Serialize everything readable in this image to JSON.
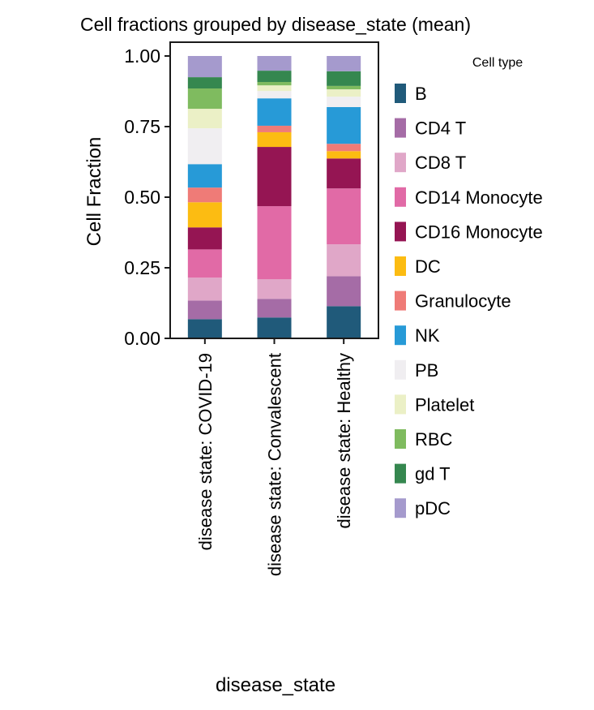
{
  "chart_data": {
    "type": "bar",
    "stacked": true,
    "title": "Cell fractions grouped by disease_state (mean)",
    "xlabel": "disease_state",
    "ylabel": "Cell Fraction",
    "ylim": [
      0,
      1.0
    ],
    "yticks": [
      "0.00",
      "0.25",
      "0.50",
      "0.75",
      "1.00"
    ],
    "ytick_values": [
      0,
      0.25,
      0.5,
      0.75,
      1.0
    ],
    "categories": [
      "disease state: COVID-19",
      "disease state: Convalescent",
      "disease state: Healthy"
    ],
    "legend_title": "Cell type",
    "legend_position": "right",
    "series": [
      {
        "name": "B",
        "color": "#205a7a",
        "values": [
          0.068,
          0.074,
          0.114
        ]
      },
      {
        "name": "CD4 T",
        "color": "#a56ca6",
        "values": [
          0.066,
          0.066,
          0.106
        ]
      },
      {
        "name": "CD8 T",
        "color": "#e0a7c8",
        "values": [
          0.081,
          0.069,
          0.113
        ]
      },
      {
        "name": "CD14 Monocyte",
        "color": "#e16aa6",
        "values": [
          0.1,
          0.259,
          0.198
        ]
      },
      {
        "name": "CD16 Monocyte",
        "color": "#951553",
        "values": [
          0.078,
          0.21,
          0.106
        ]
      },
      {
        "name": "DC",
        "color": "#fcbc12",
        "values": [
          0.089,
          0.052,
          0.026
        ]
      },
      {
        "name": "Granulocyte",
        "color": "#ef7b77",
        "values": [
          0.052,
          0.023,
          0.026
        ]
      },
      {
        "name": "NK",
        "color": "#279ad7",
        "values": [
          0.083,
          0.097,
          0.13
        ]
      },
      {
        "name": "PB",
        "color": "#f0eef1",
        "values": [
          0.127,
          0.026,
          0.037
        ]
      },
      {
        "name": "Platelet",
        "color": "#ebf0c6",
        "values": [
          0.069,
          0.02,
          0.026
        ]
      },
      {
        "name": "RBC",
        "color": "#7fbb5f",
        "values": [
          0.072,
          0.012,
          0.012
        ]
      },
      {
        "name": "gd T",
        "color": "#35874f",
        "values": [
          0.04,
          0.04,
          0.052
        ]
      },
      {
        "name": "pDC",
        "color": "#a59acd",
        "values": [
          0.075,
          0.052,
          0.054
        ]
      }
    ]
  }
}
